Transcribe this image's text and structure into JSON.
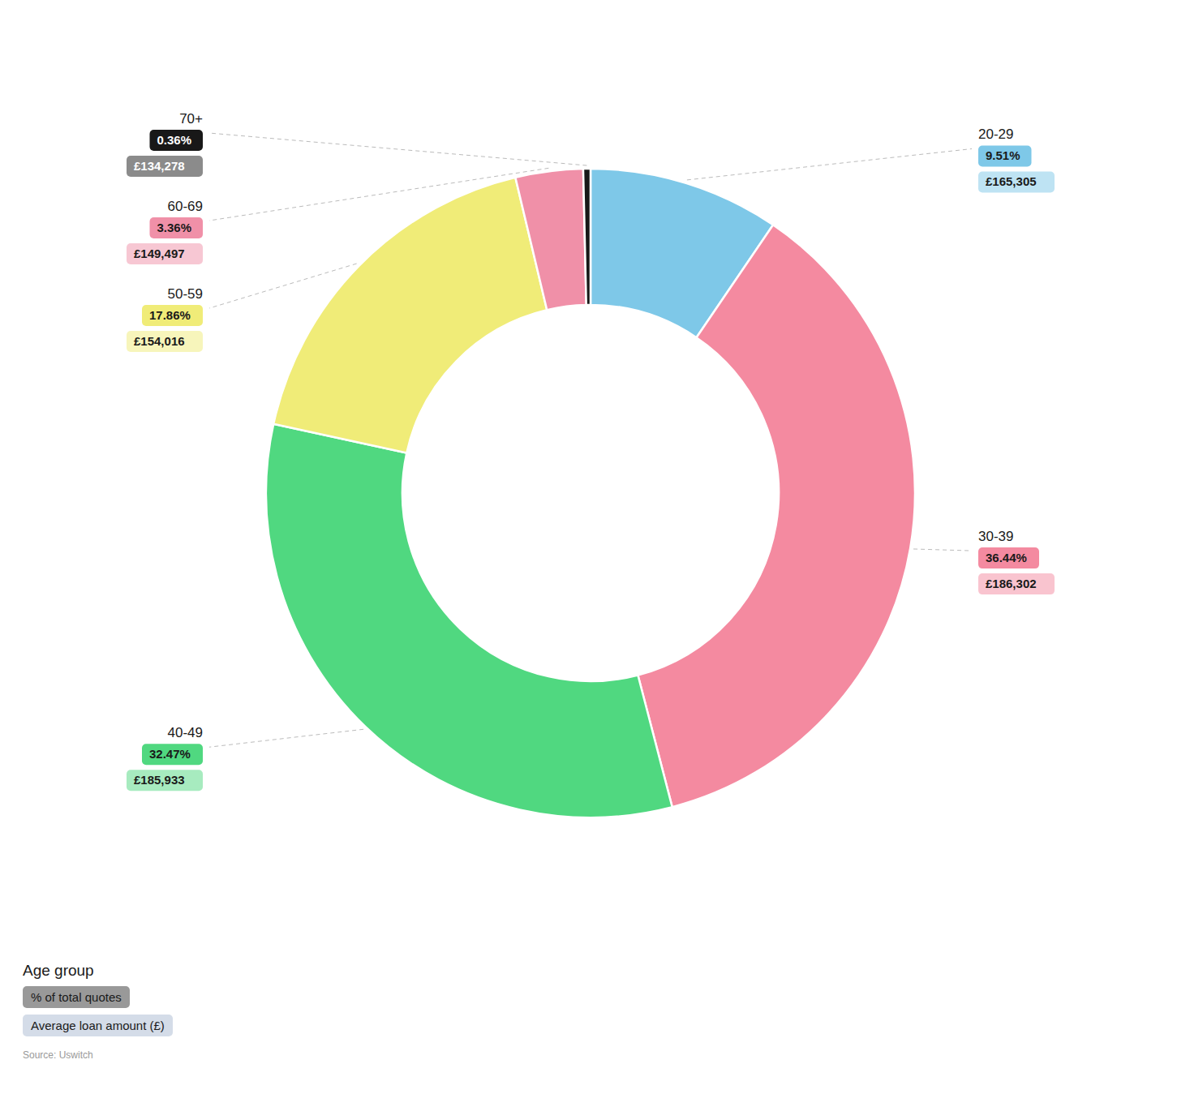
{
  "chart_data": {
    "type": "pie",
    "categories": [
      "20-29",
      "30-39",
      "40-49",
      "50-59",
      "60-69",
      "70+"
    ],
    "values": [
      9.51,
      36.44,
      32.47,
      17.86,
      3.36,
      0.36
    ],
    "value_labels": [
      "9.51%",
      "36.44%",
      "32.47%",
      "17.86%",
      "3.36%",
      "0.36%"
    ],
    "amounts": [
      165305,
      186302,
      185933,
      154016,
      149497,
      134278
    ],
    "amount_labels": [
      "£165,305",
      "£186,302",
      "£185,933",
      "£154,016",
      "£149,497",
      "£134,278"
    ],
    "colors": [
      "#7EC8E8",
      "#F48AA0",
      "#50D880",
      "#F0EC78",
      "#F090A8",
      "#181818"
    ],
    "legend_title": "Age group",
    "value_name": "% of total quotes",
    "amount_name": "Average loan amount (£)",
    "source": "Source: Uswitch",
    "legend": "bottom-left",
    "data_labels": true
  }
}
